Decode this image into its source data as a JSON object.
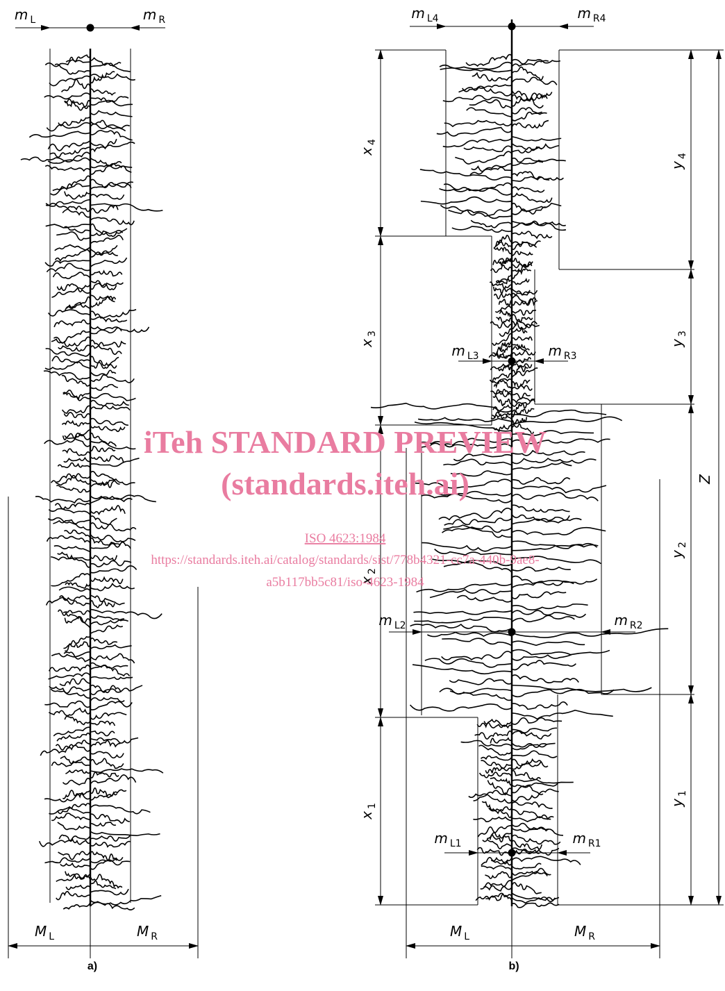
{
  "panel_a": {
    "caption": "a)",
    "labels": {
      "m_L": {
        "symbol": "m",
        "subscript": "L"
      },
      "m_R": {
        "symbol": "m",
        "subscript": "R"
      },
      "M_L": {
        "symbol": "M",
        "subscript": "L"
      },
      "M_R": {
        "symbol": "M",
        "subscript": "R"
      }
    }
  },
  "panel_b": {
    "caption": "b)",
    "labels": {
      "m_L4": {
        "symbol": "m",
        "subscript": "L4"
      },
      "m_R4": {
        "symbol": "m",
        "subscript": "R4"
      },
      "m_L3": {
        "symbol": "m",
        "subscript": "L3"
      },
      "m_R3": {
        "symbol": "m",
        "subscript": "R3"
      },
      "m_L2": {
        "symbol": "m",
        "subscript": "L2"
      },
      "m_R2": {
        "symbol": "m",
        "subscript": "R2"
      },
      "m_L1": {
        "symbol": "m",
        "subscript": "L1"
      },
      "m_R1": {
        "symbol": "m",
        "subscript": "R1"
      },
      "x_4": {
        "symbol": "x",
        "subscript": "4"
      },
      "x_3": {
        "symbol": "x",
        "subscript": "3"
      },
      "x_2": {
        "symbol": "x",
        "subscript": "2"
      },
      "x_1": {
        "symbol": "x",
        "subscript": "1"
      },
      "y_4": {
        "symbol": "y",
        "subscript": "4"
      },
      "y_3": {
        "symbol": "y",
        "subscript": "3"
      },
      "y_2": {
        "symbol": "y",
        "subscript": "2"
      },
      "y_1": {
        "symbol": "y",
        "subscript": "1"
      },
      "Z": {
        "symbol": "Z"
      },
      "M_L": {
        "symbol": "M",
        "subscript": "L"
      },
      "M_R": {
        "symbol": "M",
        "subscript": "R"
      }
    }
  },
  "watermark": {
    "title": "iTeh STANDARD PREVIEW",
    "site": "(standards.iteh.ai)",
    "standard": "ISO 4623:1984",
    "url_line_1": "https://standards.iteh.ai/catalog/standards/sist/778b4321-cc7a-440b-9ae8-",
    "url_line_2": "a5b117bb5c81/iso-4623-1984"
  }
}
